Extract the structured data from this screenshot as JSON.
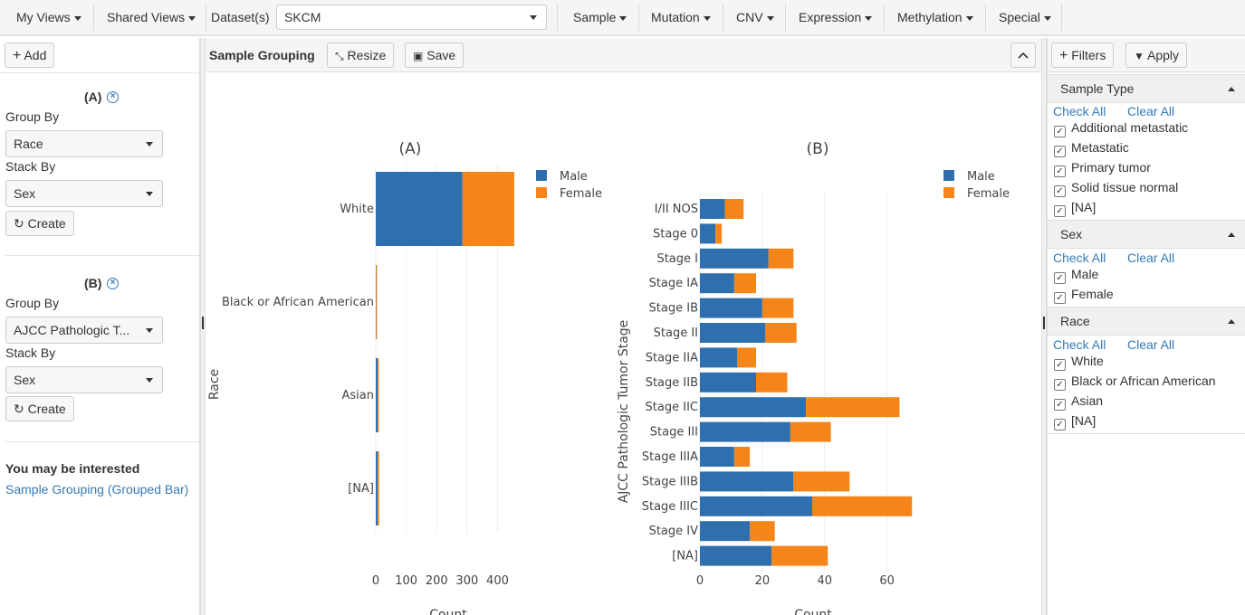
{
  "topbar": {
    "my_views": "My Views",
    "shared_views": "Shared Views",
    "datasets_label": "Dataset(s)",
    "dataset_value": "SKCM",
    "menus": [
      "Sample",
      "Mutation",
      "CNV",
      "Expression",
      "Methylation",
      "Special"
    ]
  },
  "left": {
    "add_label": "Add",
    "groups": [
      {
        "letter": "(A)",
        "group_by_label": "Group By",
        "group_by_value": "Race",
        "stack_by_label": "Stack By",
        "stack_by_value": "Sex",
        "create_label": "Create"
      },
      {
        "letter": "(B)",
        "group_by_label": "Group By",
        "group_by_value": "AJCC Pathologic T...",
        "stack_by_label": "Stack By",
        "stack_by_value": "Sex",
        "create_label": "Create"
      }
    ],
    "interest_heading": "You may be interested",
    "interest_link": "Sample Grouping (Grouped Bar)"
  },
  "center": {
    "title": "Sample Grouping",
    "resize_label": "Resize",
    "save_label": "Save"
  },
  "chart_data": [
    {
      "type": "bar",
      "orientation": "horizontal",
      "stacked": true,
      "title": "(A)",
      "xlabel": "Count",
      "ylabel": "Race",
      "categories": [
        "White",
        "Black or African American",
        "Asian",
        "[NA]"
      ],
      "series": [
        {
          "name": "Male",
          "color": "#2f6fae",
          "values": [
            285,
            1,
            6,
            6
          ]
        },
        {
          "name": "Female",
          "color": "#f58518",
          "values": [
            170,
            1,
            4,
            5
          ]
        }
      ],
      "xlim": [
        0,
        470
      ],
      "xticks": [
        0,
        100,
        200,
        300,
        400
      ],
      "grid": true,
      "legend_position": "top-right"
    },
    {
      "type": "bar",
      "orientation": "horizontal",
      "stacked": true,
      "title": "(B)",
      "xlabel": "Count",
      "ylabel": "AJCC Pathologic Tumor Stage",
      "categories": [
        "I/II NOS",
        "Stage 0",
        "Stage I",
        "Stage IA",
        "Stage IB",
        "Stage II",
        "Stage IIA",
        "Stage IIB",
        "Stage IIC",
        "Stage III",
        "Stage IIIA",
        "Stage IIIB",
        "Stage IIIC",
        "Stage IV",
        "[NA]"
      ],
      "series": [
        {
          "name": "Male",
          "color": "#2f6fae",
          "values": [
            8,
            5,
            22,
            11,
            20,
            21,
            12,
            18,
            34,
            29,
            11,
            30,
            36,
            16,
            23
          ]
        },
        {
          "name": "Female",
          "color": "#f58518",
          "values": [
            6,
            2,
            8,
            7,
            10,
            10,
            6,
            10,
            30,
            13,
            5,
            18,
            32,
            8,
            18
          ]
        }
      ],
      "xlim": [
        0,
        72
      ],
      "xticks": [
        0,
        20,
        40,
        60
      ],
      "grid": true,
      "legend_position": "top-right"
    }
  ],
  "right": {
    "filters_label": "Filters",
    "apply_label": "Apply",
    "check_all": "Check All",
    "clear_all": "Clear All",
    "sections": [
      {
        "title": "Sample Type",
        "items": [
          "Additional metastatic",
          "Metastatic",
          "Primary tumor",
          "Solid tissue normal",
          "[NA]"
        ]
      },
      {
        "title": "Sex",
        "items": [
          "Male",
          "Female"
        ]
      },
      {
        "title": "Race",
        "items": [
          "White",
          "Black or African American",
          "Asian",
          "[NA]"
        ]
      }
    ]
  }
}
